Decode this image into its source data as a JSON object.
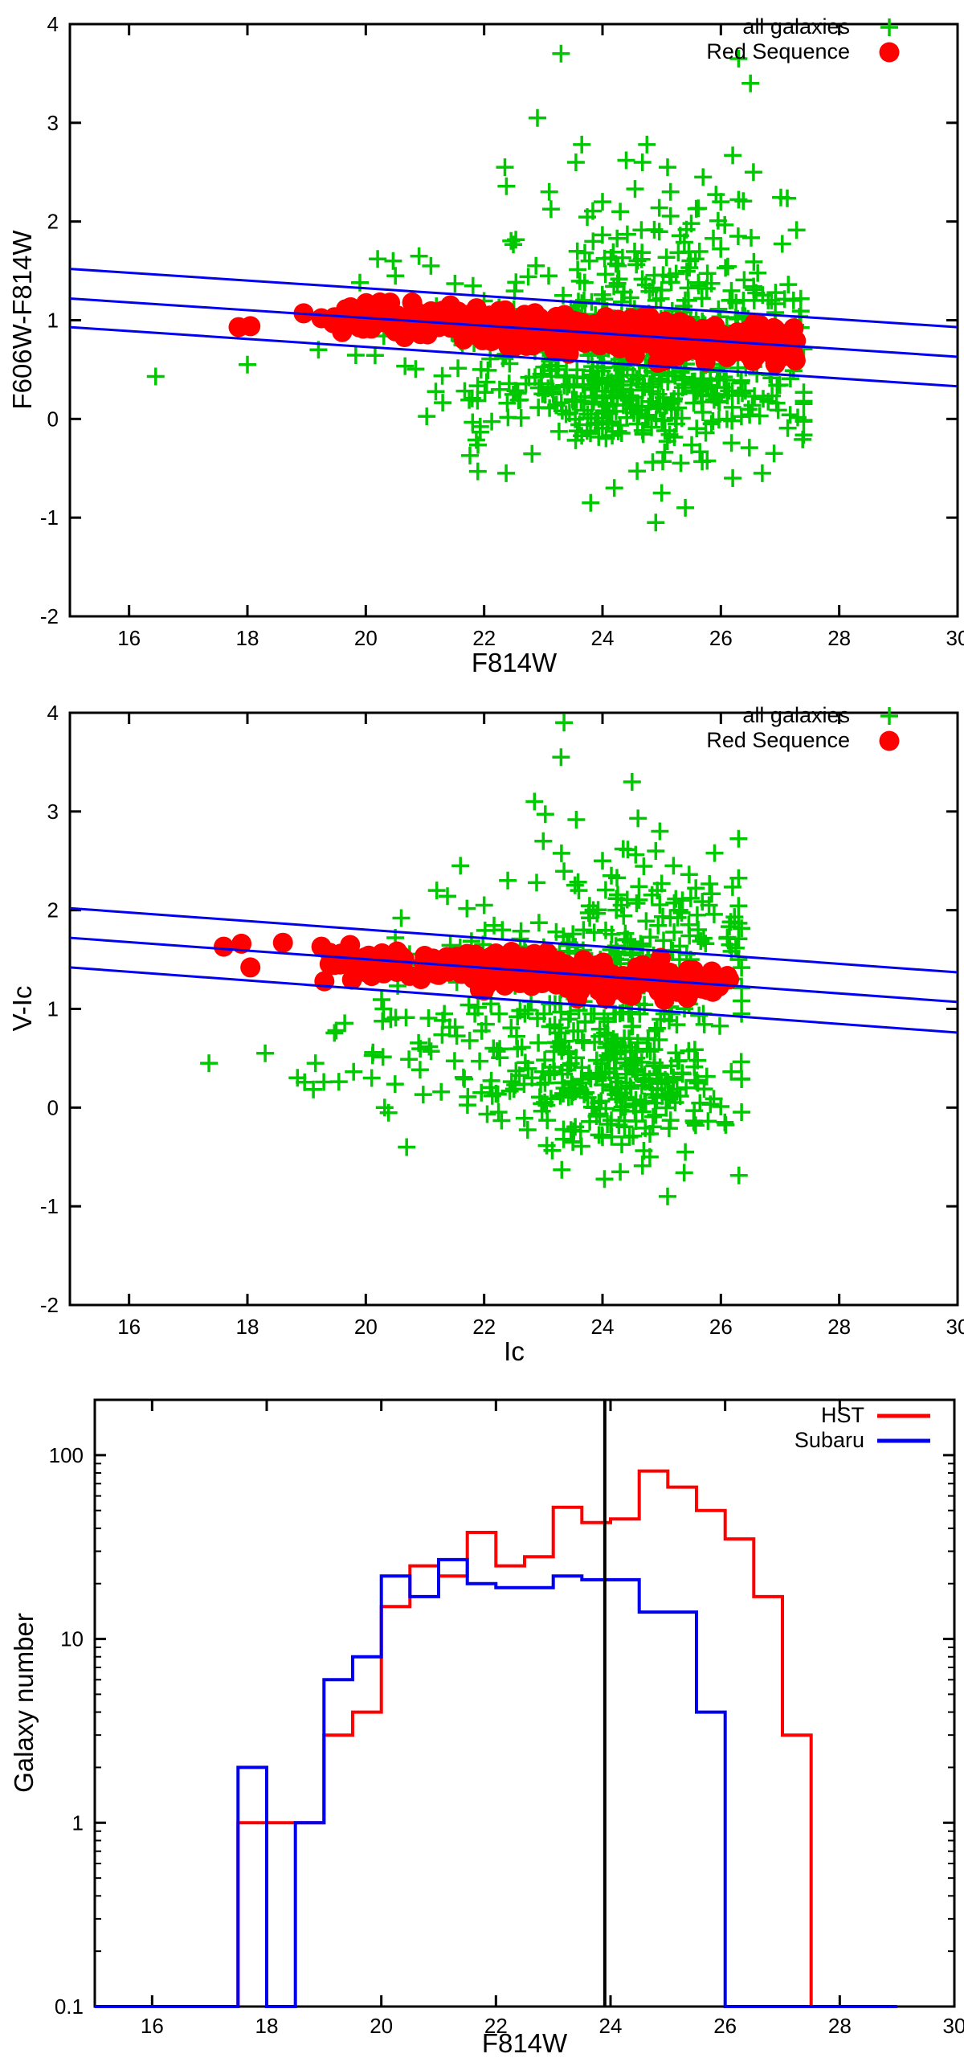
{
  "colors": {
    "green": "#00c800",
    "red": "#ff0000",
    "blue": "#0000ee",
    "black": "#000000"
  },
  "chart_data": [
    {
      "type": "scatter",
      "panel": "top",
      "xlabel": "F814W",
      "ylabel": "F606W-F814W",
      "xlim": [
        15,
        30
      ],
      "ylim": [
        -2,
        4
      ],
      "xticks": [
        16,
        18,
        20,
        22,
        24,
        26,
        28,
        30
      ],
      "yticks": [
        -2,
        -1,
        0,
        1,
        2,
        3,
        4
      ],
      "grid": false,
      "legend_position": "top-right",
      "legend": [
        {
          "label": "all galaxies",
          "marker": "plus",
          "color": "#00c800"
        },
        {
          "label": "Red Sequence",
          "marker": "circle",
          "color": "#ff0000"
        }
      ],
      "fit_lines": {
        "color": "#0000ee",
        "x": [
          15,
          30
        ],
        "upper": [
          1.52,
          0.93
        ],
        "center": [
          1.22,
          0.63
        ],
        "lower": [
          0.93,
          0.33
        ]
      },
      "series": [
        {
          "name": "all galaxies",
          "marker": "plus",
          "color": "#00c800",
          "clusters": [
            {
              "n": 380,
              "x_mean": 24.7,
              "x_sigma": 1.2,
              "x_range": [
                21.3,
                27.4
              ],
              "y_mean": 0.3,
              "y_sigma": 0.33,
              "y_range": [
                -0.55,
                0.95
              ]
            },
            {
              "n": 150,
              "x_mean": 24.6,
              "x_sigma": 1.4,
              "x_range": [
                20.2,
                27.35
              ],
              "y_mean": 1.0,
              "y_sigma": 0.25,
              "y_range": [
                0.5,
                1.6
              ]
            },
            {
              "n": 90,
              "x_mean": 25.3,
              "x_sigma": 1.2,
              "x_range": [
                21.8,
                27.3
              ],
              "y_mean": 1.65,
              "y_sigma": 0.35,
              "y_range": [
                1.2,
                2.6
              ]
            },
            {
              "n": 45,
              "x_mean": 22.0,
              "x_sigma": 1.2,
              "x_range": [
                19.2,
                24.0
              ],
              "y_mean": 0.45,
              "y_sigma": 0.45,
              "y_range": [
                -0.7,
                1.4
              ]
            }
          ],
          "points": [
            [
              16.45,
              0.43
            ],
            [
              18.0,
              0.55
            ],
            [
              19.2,
              0.7
            ],
            [
              19.9,
              1.38
            ],
            [
              20.2,
              1.62
            ],
            [
              20.5,
              1.45
            ],
            [
              20.9,
              1.65
            ],
            [
              21.1,
              1.55
            ],
            [
              22.35,
              2.55
            ],
            [
              22.9,
              3.05
            ],
            [
              23.3,
              3.7
            ],
            [
              23.55,
              2.6
            ],
            [
              23.65,
              2.78
            ],
            [
              24.0,
              2.2
            ],
            [
              24.4,
              2.62
            ],
            [
              24.55,
              2.33
            ],
            [
              24.75,
              2.78
            ],
            [
              25.1,
              2.55
            ],
            [
              25.15,
              2.3
            ],
            [
              25.5,
              1.98
            ],
            [
              25.7,
              2.45
            ],
            [
              26.0,
              2.2
            ],
            [
              26.2,
              2.67
            ],
            [
              26.3,
              3.65
            ],
            [
              26.5,
              3.4
            ],
            [
              26.55,
              2.5
            ],
            [
              23.1,
              2.3
            ],
            [
              24.3,
              2.1
            ],
            [
              23.8,
              -0.85
            ],
            [
              24.9,
              -1.05
            ],
            [
              25.4,
              -0.9
            ],
            [
              26.7,
              -0.55
            ],
            [
              26.9,
              -0.35
            ],
            [
              25.0,
              -0.75
            ],
            [
              24.2,
              -0.7
            ],
            [
              26.2,
              -0.6
            ]
          ]
        },
        {
          "name": "Red Sequence",
          "marker": "circle",
          "color": "#ff0000",
          "band": {
            "x_range": [
              19.4,
              27.3
            ],
            "n": 430,
            "sigma": 0.085,
            "clip": 0.26,
            "bias": 0.75
          },
          "points": [
            [
              17.85,
              0.93
            ],
            [
              18.05,
              0.94
            ],
            [
              18.95,
              1.07
            ],
            [
              19.25,
              1.02
            ],
            [
              19.45,
              0.97
            ],
            [
              19.6,
              0.88
            ]
          ]
        }
      ]
    },
    {
      "type": "scatter",
      "panel": "middle",
      "xlabel": "Ic",
      "ylabel": "V-Ic",
      "xlim": [
        15,
        30
      ],
      "ylim": [
        -2,
        4
      ],
      "xticks": [
        16,
        18,
        20,
        22,
        24,
        26,
        28,
        30
      ],
      "yticks": [
        -2,
        -1,
        0,
        1,
        2,
        3,
        4
      ],
      "grid": false,
      "legend_position": "top-right",
      "legend": [
        {
          "label": "all galaxies",
          "marker": "plus",
          "color": "#00c800"
        },
        {
          "label": "Red Sequence",
          "marker": "circle",
          "color": "#ff0000"
        }
      ],
      "fit_lines": {
        "color": "#0000ee",
        "x": [
          15,
          30
        ],
        "upper": [
          2.02,
          1.37
        ],
        "center": [
          1.72,
          1.07
        ],
        "lower": [
          1.42,
          0.76
        ]
      },
      "series": [
        {
          "name": "all galaxies",
          "marker": "plus",
          "color": "#00c800",
          "clusters": [
            {
              "n": 300,
              "x_mean": 24.2,
              "x_sigma": 1.05,
              "x_range": [
                21.3,
                26.35
              ],
              "y_mean": 0.35,
              "y_sigma": 0.38,
              "y_range": [
                -0.75,
                1.05
              ]
            },
            {
              "n": 150,
              "x_mean": 23.9,
              "x_sigma": 1.3,
              "x_range": [
                20.3,
                26.35
              ],
              "y_mean": 1.35,
              "y_sigma": 0.33,
              "y_range": [
                0.95,
                2.2
              ]
            },
            {
              "n": 80,
              "x_mean": 24.8,
              "x_sigma": 1.0,
              "x_range": [
                22.0,
                26.3
              ],
              "y_mean": 2.0,
              "y_sigma": 0.45,
              "y_range": [
                1.5,
                3.2
              ]
            },
            {
              "n": 55,
              "x_mean": 21.2,
              "x_sigma": 1.4,
              "x_range": [
                17.3,
                23.3
              ],
              "y_mean": 0.6,
              "y_sigma": 0.45,
              "y_range": [
                -0.4,
                1.5
              ]
            }
          ],
          "points": [
            [
              17.35,
              0.45
            ],
            [
              18.3,
              0.55
            ],
            [
              19.15,
              0.45
            ],
            [
              19.5,
              0.78
            ],
            [
              20.1,
              0.3
            ],
            [
              20.3,
              1.0
            ],
            [
              23.35,
              3.9
            ],
            [
              23.3,
              3.55
            ],
            [
              24.5,
              3.3
            ],
            [
              22.85,
              3.1
            ],
            [
              24.6,
              2.93
            ],
            [
              23.0,
              2.7
            ],
            [
              24.35,
              2.62
            ],
            [
              21.6,
              2.45
            ],
            [
              22.4,
              2.3
            ],
            [
              25.0,
              2.27
            ],
            [
              21.2,
              2.2
            ],
            [
              25.3,
              2.0
            ],
            [
              24.0,
              2.5
            ],
            [
              24.9,
              2.6
            ],
            [
              25.2,
              2.45
            ],
            [
              25.35,
              2.1
            ],
            [
              23.6,
              2.2
            ],
            [
              22.0,
              2.05
            ],
            [
              20.6,
              1.92
            ],
            [
              25.6,
              1.95
            ],
            [
              24.15,
              2.35
            ],
            [
              25.8,
              2.05
            ],
            [
              24.3,
              -0.65
            ],
            [
              24.8,
              -0.5
            ],
            [
              23.5,
              -0.35
            ],
            [
              25.1,
              -0.9
            ],
            [
              24.0,
              -0.3
            ],
            [
              25.4,
              -0.45
            ]
          ]
        },
        {
          "name": "Red Sequence",
          "marker": "circle",
          "color": "#ff0000",
          "band": {
            "x_range": [
              19.35,
              26.15
            ],
            "n": 265,
            "sigma": 0.085,
            "clip": 0.26,
            "bias": 0.8
          },
          "points": [
            [
              17.6,
              1.63
            ],
            [
              17.9,
              1.66
            ],
            [
              18.05,
              1.42
            ],
            [
              18.6,
              1.67
            ],
            [
              19.25,
              1.63
            ],
            [
              19.3,
              1.28
            ]
          ]
        }
      ]
    },
    {
      "type": "histogram-step",
      "panel": "bottom",
      "xlabel": "F814W",
      "ylabel": "Galaxy number",
      "xlim": [
        15,
        30
      ],
      "ylim": [
        0.1,
        200
      ],
      "ylog": true,
      "xticks": [
        16,
        18,
        20,
        22,
        24,
        26,
        28,
        30
      ],
      "yticks": [
        0.1,
        1,
        10,
        100
      ],
      "ytick_labels": [
        "0.1",
        "1",
        "10",
        "100"
      ],
      "grid": false,
      "legend_position": "top-right",
      "legend": [
        {
          "label": "HST",
          "marker": "line",
          "color": "#ff0000"
        },
        {
          "label": "Subaru",
          "marker": "line",
          "color": "#0000ee"
        }
      ],
      "vline": {
        "x": 23.9,
        "color": "#000000"
      },
      "bins": {
        "start": 15,
        "width": 0.5,
        "end": 29
      },
      "series": [
        {
          "name": "HST",
          "color": "#ff0000",
          "values": [
            0,
            0,
            0,
            0,
            0,
            1,
            1,
            1,
            3,
            4,
            15,
            25,
            22,
            38,
            25,
            28,
            52,
            43,
            45,
            82,
            67,
            50,
            35,
            17,
            3,
            0,
            0,
            0
          ]
        },
        {
          "name": "Subaru",
          "color": "#0000ee",
          "values": [
            0,
            0,
            0,
            0,
            0,
            2,
            0,
            1,
            6,
            8,
            22,
            17,
            27,
            20,
            19,
            19,
            22,
            21,
            21,
            14,
            14,
            4,
            0,
            0,
            0,
            0,
            0,
            0
          ]
        }
      ]
    }
  ]
}
